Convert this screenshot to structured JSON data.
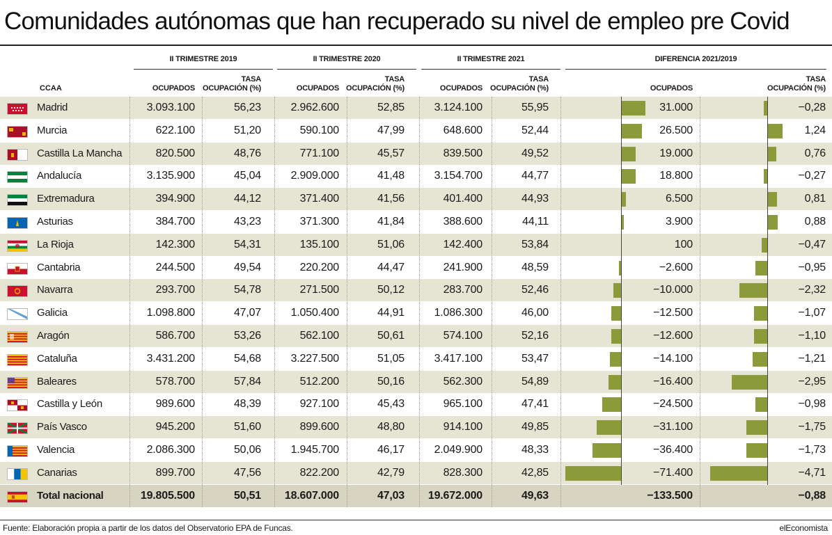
{
  "title": "Comunidades autónomas que han recuperado su nivel de empleo pre Covid",
  "groups": {
    "g2019": "II TRIMESTRE 2019",
    "g2020": "II TRIMESTRE 2020",
    "g2021": "II TRIMESTRE 2021",
    "gdiff": "DIFERENCIA 2021/2019"
  },
  "headers": {
    "ccaa": "CCAA",
    "ocupados": "OCUPADOS",
    "tasa_line1": "TASA",
    "tasa_line2": "OCUPACIÓN (%)"
  },
  "footer": {
    "source": "Fuente: Elaboración propia a partir de los datos del Observatorio EPA de Funcas.",
    "brand": "elEconomista"
  },
  "colors": {
    "bar": "#8c9b3a",
    "shade": "#e6e4d3",
    "total": "#d7d5c1"
  },
  "chart_data": {
    "type": "table",
    "columns": [
      "CCAA",
      "II TRIMESTRE 2019 OCUPADOS",
      "II TRIMESTRE 2019 TASA OCUPACIÓN (%)",
      "II TRIMESTRE 2020 OCUPADOS",
      "II TRIMESTRE 2020 TASA OCUPACIÓN (%)",
      "II TRIMESTRE 2021 OCUPADOS",
      "II TRIMESTRE 2021 TASA OCUPACIÓN (%)",
      "DIFERENCIA 2021/2019 OCUPADOS",
      "DIFERENCIA 2021/2019 TASA OCUPACIÓN (%)"
    ],
    "rows": [
      {
        "name": "Madrid",
        "flag": "madrid",
        "o19": "3.093.100",
        "t19": "56,23",
        "o20": "2.962.600",
        "t20": "52,85",
        "o21": "3.124.100",
        "t21": "55,95",
        "do": "31.000",
        "dt": "−0,28",
        "do_v": 31000,
        "dt_v": -0.28
      },
      {
        "name": "Murcia",
        "flag": "murcia",
        "o19": "622.100",
        "t19": "51,20",
        "o20": "590.100",
        "t20": "47,99",
        "o21": "648.600",
        "t21": "52,44",
        "do": "26.500",
        "dt": "1,24",
        "do_v": 26500,
        "dt_v": 1.24
      },
      {
        "name": "Castilla La Mancha",
        "flag": "clm",
        "o19": "820.500",
        "t19": "48,76",
        "o20": "771.100",
        "t20": "45,57",
        "o21": "839.500",
        "t21": "49,52",
        "do": "19.000",
        "dt": "0,76",
        "do_v": 19000,
        "dt_v": 0.76
      },
      {
        "name": "Andalucía",
        "flag": "andalucia",
        "o19": "3.135.900",
        "t19": "45,04",
        "o20": "2.909.000",
        "t20": "41,48",
        "o21": "3.154.700",
        "t21": "44,77",
        "do": "18.800",
        "dt": "−0,27",
        "do_v": 18800,
        "dt_v": -0.27
      },
      {
        "name": "Extremadura",
        "flag": "extremadura",
        "o19": "394.900",
        "t19": "44,12",
        "o20": "371.400",
        "t20": "41,56",
        "o21": "401.400",
        "t21": "44,93",
        "do": "6.500",
        "dt": "0,81",
        "do_v": 6500,
        "dt_v": 0.81
      },
      {
        "name": "Asturias",
        "flag": "asturias",
        "o19": "384.700",
        "t19": "43,23",
        "o20": "371.300",
        "t20": "41,84",
        "o21": "388.600",
        "t21": "44,11",
        "do": "3.900",
        "dt": "0,88",
        "do_v": 3900,
        "dt_v": 0.88
      },
      {
        "name": "La Rioja",
        "flag": "rioja",
        "o19": "142.300",
        "t19": "54,31",
        "o20": "135.100",
        "t20": "51,06",
        "o21": "142.400",
        "t21": "53,84",
        "do": "100",
        "dt": "−0,47",
        "do_v": 100,
        "dt_v": -0.47
      },
      {
        "name": "Cantabria",
        "flag": "cantabria",
        "o19": "244.500",
        "t19": "49,54",
        "o20": "220.200",
        "t20": "44,47",
        "o21": "241.900",
        "t21": "48,59",
        "do": "−2.600",
        "dt": "−0,95",
        "do_v": -2600,
        "dt_v": -0.95
      },
      {
        "name": "Navarra",
        "flag": "navarra",
        "o19": "293.700",
        "t19": "54,78",
        "o20": "271.500",
        "t20": "50,12",
        "o21": "283.700",
        "t21": "52,46",
        "do": "−10.000",
        "dt": "−2,32",
        "do_v": -10000,
        "dt_v": -2.32
      },
      {
        "name": "Galicia",
        "flag": "galicia",
        "o19": "1.098.800",
        "t19": "47,07",
        "o20": "1.050.400",
        "t20": "44,91",
        "o21": "1.086.300",
        "t21": "46,00",
        "do": "−12.500",
        "dt": "−1,07",
        "do_v": -12500,
        "dt_v": -1.07
      },
      {
        "name": "Aragón",
        "flag": "aragon",
        "o19": "586.700",
        "t19": "53,26",
        "o20": "562.100",
        "t20": "50,61",
        "o21": "574.100",
        "t21": "52,16",
        "do": "−12.600",
        "dt": "−1,10",
        "do_v": -12600,
        "dt_v": -1.1
      },
      {
        "name": "Cataluña",
        "flag": "cataluna",
        "o19": "3.431.200",
        "t19": "54,68",
        "o20": "3.227.500",
        "t20": "51,05",
        "o21": "3.417.100",
        "t21": "53,47",
        "do": "−14.100",
        "dt": "−1,21",
        "do_v": -14100,
        "dt_v": -1.21
      },
      {
        "name": "Baleares",
        "flag": "baleares",
        "o19": "578.700",
        "t19": "57,84",
        "o20": "512.200",
        "t20": "50,16",
        "o21": "562.300",
        "t21": "54,89",
        "do": "−16.400",
        "dt": "−2,95",
        "do_v": -16400,
        "dt_v": -2.95
      },
      {
        "name": "Castilla y León",
        "flag": "cyl",
        "o19": "989.600",
        "t19": "48,39",
        "o20": "927.100",
        "t20": "45,43",
        "o21": "965.100",
        "t21": "47,41",
        "do": "−24.500",
        "dt": "−0,98",
        "do_v": -24500,
        "dt_v": -0.98
      },
      {
        "name": "País Vasco",
        "flag": "paisvasco",
        "o19": "945.200",
        "t19": "51,60",
        "o20": "899.600",
        "t20": "48,80",
        "o21": "914.100",
        "t21": "49,85",
        "do": "−31.100",
        "dt": "−1,75",
        "do_v": -31100,
        "dt_v": -1.75
      },
      {
        "name": "Valencia",
        "flag": "valencia",
        "o19": "2.086.300",
        "t19": "50,06",
        "o20": "1.945.700",
        "t20": "46,17",
        "o21": "2.049.900",
        "t21": "48,33",
        "do": "−36.400",
        "dt": "−1,73",
        "do_v": -36400,
        "dt_v": -1.73
      },
      {
        "name": "Canarias",
        "flag": "canarias",
        "o19": "899.700",
        "t19": "47,56",
        "o20": "822.200",
        "t20": "42,79",
        "o21": "828.300",
        "t21": "42,85",
        "do": "−71.400",
        "dt": "−4,71",
        "do_v": -71400,
        "dt_v": -4.71
      }
    ],
    "total": {
      "name": "Total nacional",
      "flag": "espana",
      "o19": "19.805.500",
      "t19": "50,51",
      "o20": "18.607.000",
      "t20": "47,03",
      "o21": "19.672.000",
      "t21": "49,63",
      "do": "−133.500",
      "dt": "−0,88"
    }
  }
}
